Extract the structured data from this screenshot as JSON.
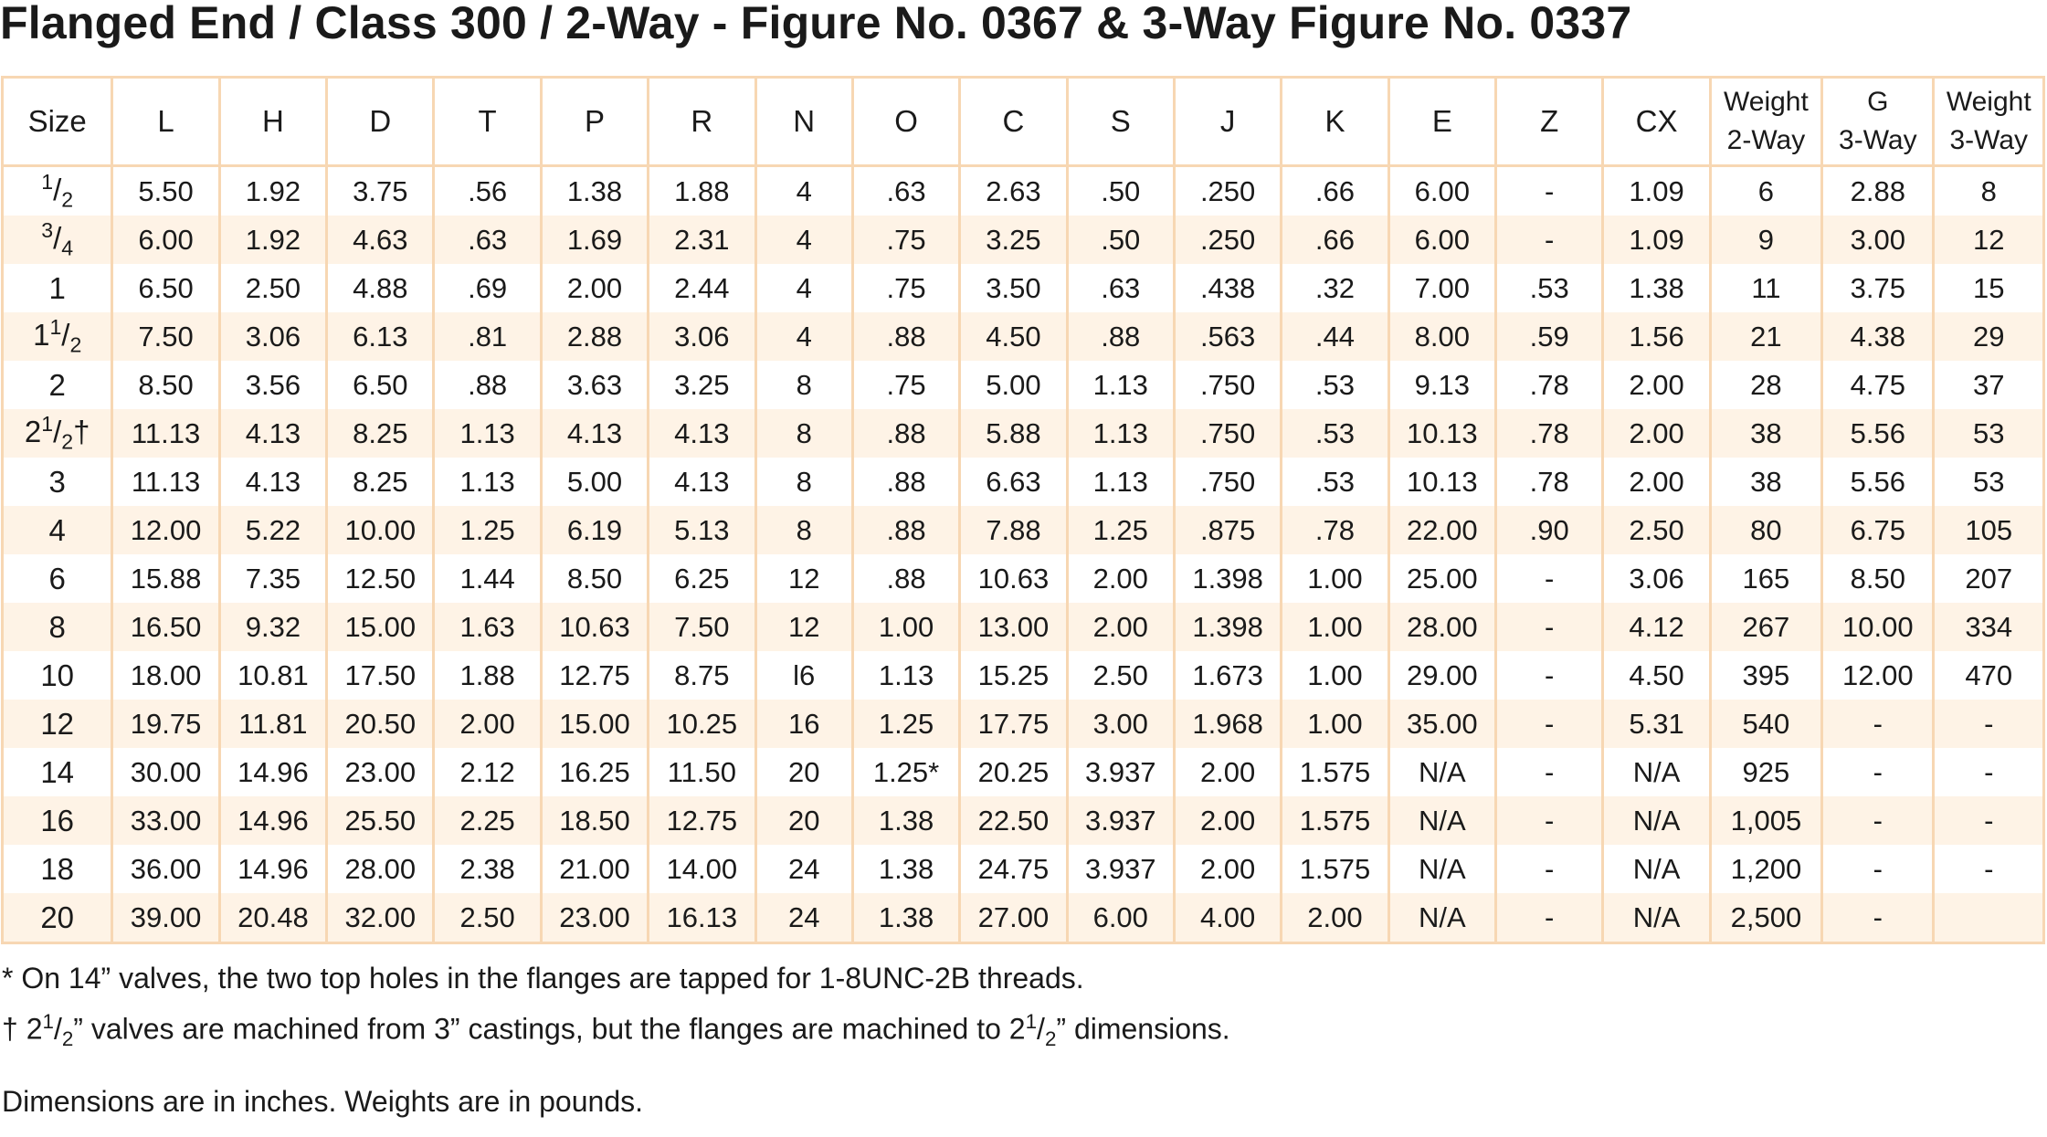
{
  "title": "Flanged End / Class 300 / 2-Way - Figure No. 0367 & 3-Way Figure No. 0337",
  "table": {
    "headers": [
      "Size",
      "L",
      "H",
      "D",
      "T",
      "P",
      "R",
      "N",
      "O",
      "C",
      "S",
      "J",
      "K",
      "E",
      "Z",
      "CX",
      "Weight 2-Way",
      "G 3-Way",
      "Weight 3-Way"
    ],
    "rows": [
      [
        "1/2",
        "5.50",
        "1.92",
        "3.75",
        ".56",
        "1.38",
        "1.88",
        "4",
        ".63",
        "2.63",
        ".50",
        ".250",
        ".66",
        "6.00",
        "-",
        "1.09",
        "6",
        "2.88",
        "8"
      ],
      [
        "3/4",
        "6.00",
        "1.92",
        "4.63",
        ".63",
        "1.69",
        "2.31",
        "4",
        ".75",
        "3.25",
        ".50",
        ".250",
        ".66",
        "6.00",
        "-",
        "1.09",
        "9",
        "3.00",
        "12"
      ],
      [
        "1",
        "6.50",
        "2.50",
        "4.88",
        ".69",
        "2.00",
        "2.44",
        "4",
        ".75",
        "3.50",
        ".63",
        ".438",
        ".32",
        "7.00",
        ".53",
        "1.38",
        "11",
        "3.75",
        "15"
      ],
      [
        "11/2",
        "7.50",
        "3.06",
        "6.13",
        ".81",
        "2.88",
        "3.06",
        "4",
        ".88",
        "4.50",
        ".88",
        ".563",
        ".44",
        "8.00",
        ".59",
        "1.56",
        "21",
        "4.38",
        "29"
      ],
      [
        "2",
        "8.50",
        "3.56",
        "6.50",
        ".88",
        "3.63",
        "3.25",
        "8",
        ".75",
        "5.00",
        "1.13",
        ".750",
        ".53",
        "9.13",
        ".78",
        "2.00",
        "28",
        "4.75",
        "37"
      ],
      [
        "21/2†",
        "11.13",
        "4.13",
        "8.25",
        "1.13",
        "4.13",
        "4.13",
        "8",
        ".88",
        "5.88",
        "1.13",
        ".750",
        ".53",
        "10.13",
        ".78",
        "2.00",
        "38",
        "5.56",
        "53"
      ],
      [
        "3",
        "11.13",
        "4.13",
        "8.25",
        "1.13",
        "5.00",
        "4.13",
        "8",
        ".88",
        "6.63",
        "1.13",
        ".750",
        ".53",
        "10.13",
        ".78",
        "2.00",
        "38",
        "5.56",
        "53"
      ],
      [
        "4",
        "12.00",
        "5.22",
        "10.00",
        "1.25",
        "6.19",
        "5.13",
        "8",
        ".88",
        "7.88",
        "1.25",
        ".875",
        ".78",
        "22.00",
        ".90",
        "2.50",
        "80",
        "6.75",
        "105"
      ],
      [
        "6",
        "15.88",
        "7.35",
        "12.50",
        "1.44",
        "8.50",
        "6.25",
        "12",
        ".88",
        "10.63",
        "2.00",
        "1.398",
        "1.00",
        "25.00",
        "-",
        "3.06",
        "165",
        "8.50",
        "207"
      ],
      [
        "8",
        "16.50",
        "9.32",
        "15.00",
        "1.63",
        "10.63",
        "7.50",
        "12",
        "1.00",
        "13.00",
        "2.00",
        "1.398",
        "1.00",
        "28.00",
        "-",
        "4.12",
        "267",
        "10.00",
        "334"
      ],
      [
        "10",
        "18.00",
        "10.81",
        "17.50",
        "1.88",
        "12.75",
        "8.75",
        "l6",
        "1.13",
        "15.25",
        "2.50",
        "1.673",
        "1.00",
        "29.00",
        "-",
        "4.50",
        "395",
        "12.00",
        "470"
      ],
      [
        "12",
        "19.75",
        "11.81",
        "20.50",
        "2.00",
        "15.00",
        "10.25",
        "16",
        "1.25",
        "17.75",
        "3.00",
        "1.968",
        "1.00",
        "35.00",
        "-",
        "5.31",
        "540",
        "-",
        "-"
      ],
      [
        "14",
        "30.00",
        "14.96",
        "23.00",
        "2.12",
        "16.25",
        "11.50",
        "20",
        "1.25*",
        "20.25",
        "3.937",
        "2.00",
        "1.575",
        "N/A",
        "-",
        "N/A",
        "925",
        "-",
        "-"
      ],
      [
        "16",
        "33.00",
        "14.96",
        "25.50",
        "2.25",
        "18.50",
        "12.75",
        "20",
        "1.38",
        "22.50",
        "3.937",
        "2.00",
        "1.575",
        "N/A",
        "-",
        "N/A",
        "1,005",
        "-",
        "-"
      ],
      [
        "18",
        "36.00",
        "14.96",
        "28.00",
        "2.38",
        "21.00",
        "14.00",
        "24",
        "1.38",
        "24.75",
        "3.937",
        "2.00",
        "1.575",
        "N/A",
        "-",
        "N/A",
        "1,200",
        "-",
        "-"
      ],
      [
        "20",
        "39.00",
        "20.48",
        "32.00",
        "2.50",
        "23.00",
        "16.13",
        "24",
        "1.38",
        "27.00",
        "6.00",
        "4.00",
        "2.00",
        "N/A",
        "-",
        "N/A",
        "2,500",
        "-",
        ""
      ]
    ]
  },
  "footnotes": {
    "star": "*  On 14” valves, the two top holes in the flanges are tapped for 1-8UNC-2B threads.",
    "dagger": "† 21/2” valves are machined from 3” castings, but the flanges are machined to 21/2” dimensions.",
    "units": "Dimensions are in inches.  Weights are in pounds."
  },
  "colors": {
    "grid": "#f7d7b3",
    "stripe": "#fef3e6",
    "text": "#1a1a1a"
  }
}
